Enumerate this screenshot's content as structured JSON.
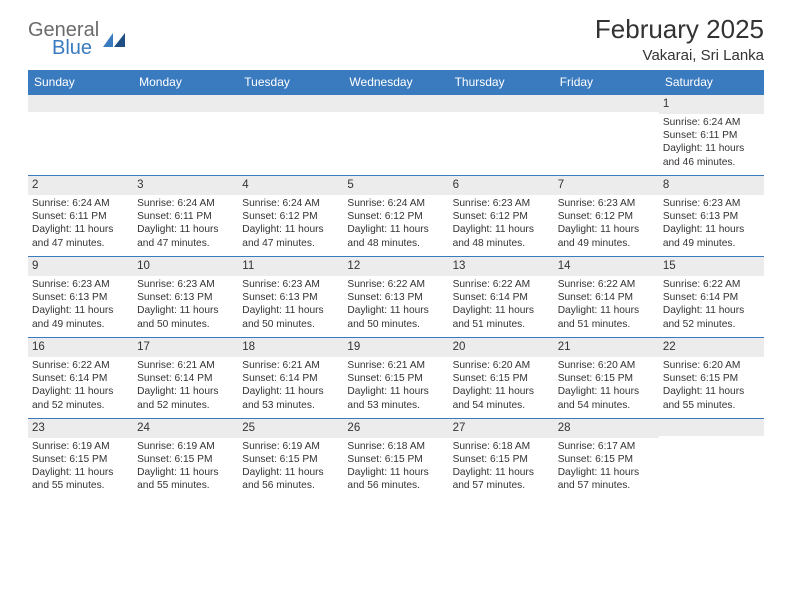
{
  "brand": {
    "word1": "General",
    "word2": "Blue"
  },
  "title": {
    "month": "February 2025",
    "location": "Vakarai, Sri Lanka"
  },
  "colors": {
    "header_bg": "#3a7bbf",
    "header_text": "#ffffff",
    "band_bg": "#ececec",
    "rule": "#3a7bbf",
    "logo_gray": "#6b6b6b",
    "logo_blue": "#3a7bbf"
  },
  "dow": [
    "Sunday",
    "Monday",
    "Tuesday",
    "Wednesday",
    "Thursday",
    "Friday",
    "Saturday"
  ],
  "weeks": [
    [
      {
        "n": "",
        "sr": "",
        "ss": "",
        "dl": ""
      },
      {
        "n": "",
        "sr": "",
        "ss": "",
        "dl": ""
      },
      {
        "n": "",
        "sr": "",
        "ss": "",
        "dl": ""
      },
      {
        "n": "",
        "sr": "",
        "ss": "",
        "dl": ""
      },
      {
        "n": "",
        "sr": "",
        "ss": "",
        "dl": ""
      },
      {
        "n": "",
        "sr": "",
        "ss": "",
        "dl": ""
      },
      {
        "n": "1",
        "sr": "Sunrise: 6:24 AM",
        "ss": "Sunset: 6:11 PM",
        "dl": "Daylight: 11 hours and 46 minutes."
      }
    ],
    [
      {
        "n": "2",
        "sr": "Sunrise: 6:24 AM",
        "ss": "Sunset: 6:11 PM",
        "dl": "Daylight: 11 hours and 47 minutes."
      },
      {
        "n": "3",
        "sr": "Sunrise: 6:24 AM",
        "ss": "Sunset: 6:11 PM",
        "dl": "Daylight: 11 hours and 47 minutes."
      },
      {
        "n": "4",
        "sr": "Sunrise: 6:24 AM",
        "ss": "Sunset: 6:12 PM",
        "dl": "Daylight: 11 hours and 47 minutes."
      },
      {
        "n": "5",
        "sr": "Sunrise: 6:24 AM",
        "ss": "Sunset: 6:12 PM",
        "dl": "Daylight: 11 hours and 48 minutes."
      },
      {
        "n": "6",
        "sr": "Sunrise: 6:23 AM",
        "ss": "Sunset: 6:12 PM",
        "dl": "Daylight: 11 hours and 48 minutes."
      },
      {
        "n": "7",
        "sr": "Sunrise: 6:23 AM",
        "ss": "Sunset: 6:12 PM",
        "dl": "Daylight: 11 hours and 49 minutes."
      },
      {
        "n": "8",
        "sr": "Sunrise: 6:23 AM",
        "ss": "Sunset: 6:13 PM",
        "dl": "Daylight: 11 hours and 49 minutes."
      }
    ],
    [
      {
        "n": "9",
        "sr": "Sunrise: 6:23 AM",
        "ss": "Sunset: 6:13 PM",
        "dl": "Daylight: 11 hours and 49 minutes."
      },
      {
        "n": "10",
        "sr": "Sunrise: 6:23 AM",
        "ss": "Sunset: 6:13 PM",
        "dl": "Daylight: 11 hours and 50 minutes."
      },
      {
        "n": "11",
        "sr": "Sunrise: 6:23 AM",
        "ss": "Sunset: 6:13 PM",
        "dl": "Daylight: 11 hours and 50 minutes."
      },
      {
        "n": "12",
        "sr": "Sunrise: 6:22 AM",
        "ss": "Sunset: 6:13 PM",
        "dl": "Daylight: 11 hours and 50 minutes."
      },
      {
        "n": "13",
        "sr": "Sunrise: 6:22 AM",
        "ss": "Sunset: 6:14 PM",
        "dl": "Daylight: 11 hours and 51 minutes."
      },
      {
        "n": "14",
        "sr": "Sunrise: 6:22 AM",
        "ss": "Sunset: 6:14 PM",
        "dl": "Daylight: 11 hours and 51 minutes."
      },
      {
        "n": "15",
        "sr": "Sunrise: 6:22 AM",
        "ss": "Sunset: 6:14 PM",
        "dl": "Daylight: 11 hours and 52 minutes."
      }
    ],
    [
      {
        "n": "16",
        "sr": "Sunrise: 6:22 AM",
        "ss": "Sunset: 6:14 PM",
        "dl": "Daylight: 11 hours and 52 minutes."
      },
      {
        "n": "17",
        "sr": "Sunrise: 6:21 AM",
        "ss": "Sunset: 6:14 PM",
        "dl": "Daylight: 11 hours and 52 minutes."
      },
      {
        "n": "18",
        "sr": "Sunrise: 6:21 AM",
        "ss": "Sunset: 6:14 PM",
        "dl": "Daylight: 11 hours and 53 minutes."
      },
      {
        "n": "19",
        "sr": "Sunrise: 6:21 AM",
        "ss": "Sunset: 6:15 PM",
        "dl": "Daylight: 11 hours and 53 minutes."
      },
      {
        "n": "20",
        "sr": "Sunrise: 6:20 AM",
        "ss": "Sunset: 6:15 PM",
        "dl": "Daylight: 11 hours and 54 minutes."
      },
      {
        "n": "21",
        "sr": "Sunrise: 6:20 AM",
        "ss": "Sunset: 6:15 PM",
        "dl": "Daylight: 11 hours and 54 minutes."
      },
      {
        "n": "22",
        "sr": "Sunrise: 6:20 AM",
        "ss": "Sunset: 6:15 PM",
        "dl": "Daylight: 11 hours and 55 minutes."
      }
    ],
    [
      {
        "n": "23",
        "sr": "Sunrise: 6:19 AM",
        "ss": "Sunset: 6:15 PM",
        "dl": "Daylight: 11 hours and 55 minutes."
      },
      {
        "n": "24",
        "sr": "Sunrise: 6:19 AM",
        "ss": "Sunset: 6:15 PM",
        "dl": "Daylight: 11 hours and 55 minutes."
      },
      {
        "n": "25",
        "sr": "Sunrise: 6:19 AM",
        "ss": "Sunset: 6:15 PM",
        "dl": "Daylight: 11 hours and 56 minutes."
      },
      {
        "n": "26",
        "sr": "Sunrise: 6:18 AM",
        "ss": "Sunset: 6:15 PM",
        "dl": "Daylight: 11 hours and 56 minutes."
      },
      {
        "n": "27",
        "sr": "Sunrise: 6:18 AM",
        "ss": "Sunset: 6:15 PM",
        "dl": "Daylight: 11 hours and 57 minutes."
      },
      {
        "n": "28",
        "sr": "Sunrise: 6:17 AM",
        "ss": "Sunset: 6:15 PM",
        "dl": "Daylight: 11 hours and 57 minutes."
      },
      {
        "n": "",
        "sr": "",
        "ss": "",
        "dl": ""
      }
    ]
  ]
}
